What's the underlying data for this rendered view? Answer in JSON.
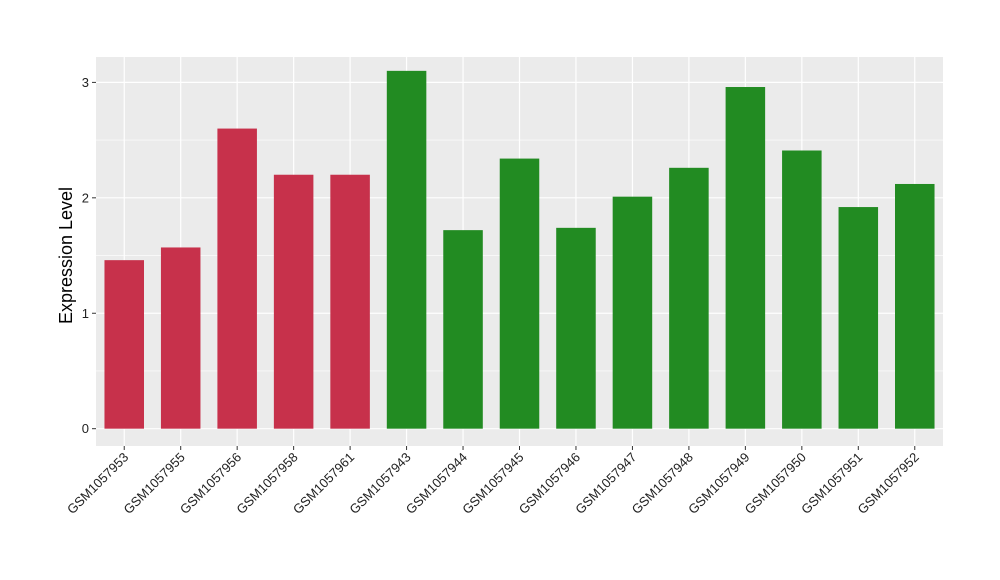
{
  "chart_data": {
    "type": "bar",
    "title": "",
    "xlabel": "",
    "ylabel": "Expression Level",
    "ylim": [
      -0.15,
      3.22
    ],
    "yticks": [
      0,
      1,
      2,
      3
    ],
    "ytick_labels": [
      "0",
      "1",
      "2",
      "3"
    ],
    "grid": true,
    "legend": "none",
    "categories": [
      "GSM1057953",
      "GSM1057955",
      "GSM1057956",
      "GSM1057958",
      "GSM1057961",
      "GSM1057943",
      "GSM1057944",
      "GSM1057945",
      "GSM1057946",
      "GSM1057947",
      "GSM1057948",
      "GSM1057949",
      "GSM1057950",
      "GSM1057951",
      "GSM1057952"
    ],
    "values": [
      1.46,
      1.57,
      2.6,
      2.2,
      2.2,
      3.1,
      1.72,
      2.34,
      1.74,
      2.01,
      2.26,
      2.96,
      2.41,
      1.92,
      2.12
    ],
    "bar_colors": [
      "#c7314b",
      "#c7314b",
      "#c7314b",
      "#c7314b",
      "#c7314b",
      "#228b22",
      "#228b22",
      "#228b22",
      "#228b22",
      "#228b22",
      "#228b22",
      "#228b22",
      "#228b22",
      "#228b22",
      "#228b22"
    ],
    "panel_background": "#ebebeb",
    "gridline_color": "#ffffff"
  }
}
